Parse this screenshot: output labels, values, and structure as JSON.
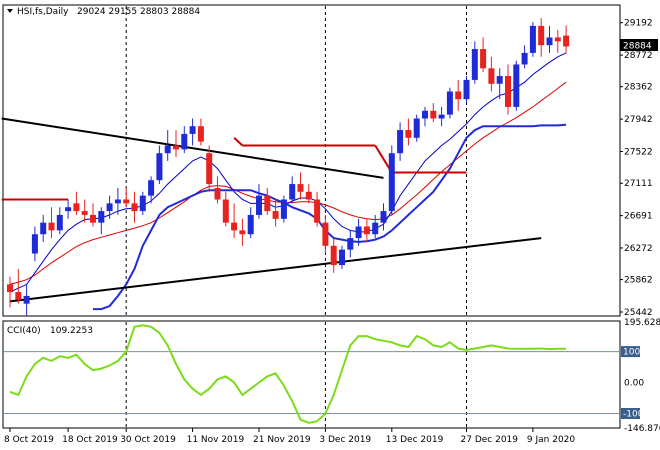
{
  "chart_data": [
    {
      "type": "candlestick",
      "title": "HSI,fs,Daily  29024 29155 28803 28884",
      "symbol": "HSI,fs,Daily",
      "ohlc_readout": "29024 29155 28803 28884",
      "last_price_label": "28884",
      "ylim": [
        25442,
        29382
      ],
      "yticks": [
        "29192",
        "28772",
        "28362",
        "27942",
        "27522",
        "27111",
        "26691",
        "26272",
        "25862",
        "25442"
      ],
      "xlabels": [
        "8 Oct 2019",
        "18 Oct 2019",
        "30 Oct 2019",
        "11 Nov 2019",
        "21 Nov 2019",
        "3 Dec 2019",
        "13 Dec 2019",
        "27 Dec 2019",
        "9 Jan 2020"
      ],
      "xlabel_index": [
        0,
        7,
        14,
        22,
        30,
        38,
        46,
        55,
        63
      ],
      "vgrid_index": [
        14,
        38,
        55
      ],
      "colors": {
        "up": "#1f2bd6",
        "down": "#e8221f",
        "ma_fast": "#0000c8",
        "ma_slow": "#dd0000",
        "trend": "#000000",
        "hline": "#cc0000"
      },
      "candles": [
        [
          25800,
          25900,
          25500,
          25700
        ],
        [
          25700,
          26000,
          25550,
          25600
        ],
        [
          25550,
          25800,
          25400,
          25650
        ],
        [
          26200,
          26550,
          26100,
          26450
        ],
        [
          26450,
          26700,
          26350,
          26600
        ],
        [
          26600,
          26800,
          26400,
          26500
        ],
        [
          26500,
          26800,
          26450,
          26700
        ],
        [
          26750,
          26900,
          26650,
          26800
        ],
        [
          26850,
          27000,
          26700,
          26750
        ],
        [
          26750,
          26900,
          26600,
          26700
        ],
        [
          26700,
          26850,
          26550,
          26600
        ],
        [
          26600,
          26800,
          26450,
          26750
        ],
        [
          26750,
          26950,
          26650,
          26850
        ],
        [
          26850,
          27050,
          26700,
          26900
        ],
        [
          26900,
          27050,
          26800,
          26850
        ],
        [
          26850,
          27000,
          26600,
          26750
        ],
        [
          26750,
          27000,
          26700,
          26950
        ],
        [
          26950,
          27200,
          26850,
          27150
        ],
        [
          27150,
          27600,
          27100,
          27500
        ],
        [
          27500,
          27800,
          27400,
          27600
        ],
        [
          27600,
          27800,
          27450,
          27550
        ],
        [
          27550,
          27850,
          27500,
          27750
        ],
        [
          27750,
          27950,
          27600,
          27850
        ],
        [
          27850,
          27950,
          27600,
          27650
        ],
        [
          27500,
          27600,
          27000,
          27100
        ],
        [
          27050,
          27200,
          26850,
          26900
        ],
        [
          26900,
          27000,
          26550,
          26600
        ],
        [
          26600,
          26850,
          26400,
          26500
        ],
        [
          26500,
          26650,
          26300,
          26450
        ],
        [
          26450,
          26800,
          26400,
          26700
        ],
        [
          26700,
          27100,
          26650,
          26950
        ],
        [
          26950,
          27050,
          26700,
          26750
        ],
        [
          26750,
          26900,
          26550,
          26650
        ],
        [
          26650,
          26950,
          26600,
          26900
        ],
        [
          26900,
          27200,
          26850,
          27100
        ],
        [
          27100,
          27250,
          26900,
          27000
        ],
        [
          27000,
          27100,
          26850,
          26900
        ],
        [
          26900,
          27000,
          26550,
          26600
        ],
        [
          26600,
          26700,
          26200,
          26300
        ],
        [
          26300,
          26400,
          25950,
          26050
        ],
        [
          26050,
          26300,
          26000,
          26250
        ],
        [
          26250,
          26500,
          26150,
          26400
        ],
        [
          26400,
          26650,
          26300,
          26550
        ],
        [
          26550,
          26650,
          26350,
          26450
        ],
        [
          26450,
          26700,
          26400,
          26600
        ],
        [
          26600,
          26850,
          26500,
          26750
        ],
        [
          26750,
          27600,
          26700,
          27500
        ],
        [
          27500,
          27900,
          27400,
          27800
        ],
        [
          27800,
          27950,
          27600,
          27700
        ],
        [
          27700,
          28000,
          27650,
          27950
        ],
        [
          27950,
          28100,
          27850,
          28050
        ],
        [
          28050,
          28150,
          27900,
          27950
        ],
        [
          27950,
          28100,
          27850,
          28000
        ],
        [
          28000,
          28350,
          27950,
          28300
        ],
        [
          28300,
          28450,
          28050,
          28200
        ],
        [
          28200,
          28500,
          28150,
          28450
        ],
        [
          28450,
          28950,
          28400,
          28850
        ],
        [
          28850,
          29000,
          28550,
          28600
        ],
        [
          28600,
          28750,
          28300,
          28400
        ],
        [
          28400,
          28600,
          28200,
          28500
        ],
        [
          28500,
          28650,
          28000,
          28100
        ],
        [
          28100,
          28700,
          28050,
          28650
        ],
        [
          28650,
          28900,
          28600,
          28800
        ],
        [
          28800,
          29200,
          28750,
          29150
        ],
        [
          29150,
          29250,
          28750,
          28900
        ],
        [
          28900,
          29150,
          28800,
          29000
        ],
        [
          29000,
          29100,
          28800,
          28950
        ],
        [
          29024,
          29155,
          28803,
          28884
        ]
      ],
      "ma_fast": [
        25700,
        25750,
        25800,
        25950,
        26100,
        26250,
        26380,
        26500,
        26580,
        26640,
        26650,
        26660,
        26700,
        26750,
        26780,
        26790,
        26820,
        26880,
        26980,
        27100,
        27200,
        27300,
        27400,
        27450,
        27400,
        27300,
        27150,
        27000,
        26900,
        26850,
        26850,
        26850,
        26800,
        26820,
        26880,
        26920,
        26920,
        26880,
        26780,
        26650,
        26550,
        26500,
        26480,
        26480,
        26520,
        26580,
        26750,
        26950,
        27100,
        27250,
        27400,
        27500,
        27600,
        27680,
        27780,
        27880,
        28000,
        28100,
        28180,
        28250,
        28280,
        28350,
        28420,
        28520,
        28600,
        28680,
        28750,
        28800
      ],
      "ma_slow": [
        25800,
        25830,
        25860,
        25920,
        26000,
        26080,
        26150,
        26220,
        26290,
        26340,
        26380,
        26410,
        26440,
        26470,
        26500,
        26530,
        26560,
        26600,
        26660,
        26730,
        26800,
        26870,
        26950,
        27020,
        27070,
        27080,
        27070,
        27030,
        26980,
        26940,
        26910,
        26890,
        26870,
        26860,
        26860,
        26870,
        26870,
        26860,
        26830,
        26790,
        26740,
        26700,
        26670,
        26650,
        26640,
        26650,
        26700,
        26780,
        26870,
        26960,
        27060,
        27160,
        27260,
        27350,
        27440,
        27530,
        27620,
        27700,
        27770,
        27840,
        27900,
        27960,
        28030,
        28100,
        28180,
        28260,
        28340,
        28420
      ],
      "channel_low": [
        null,
        null,
        null,
        null,
        null,
        null,
        null,
        null,
        null,
        null,
        25480,
        25480,
        25520,
        25650,
        25800,
        26000,
        26300,
        26500,
        26700,
        26800,
        26850,
        26900,
        26950,
        27000,
        27020,
        27020,
        27020,
        27020,
        27020,
        27020,
        26980,
        26950,
        26900,
        26860,
        26800,
        26760,
        26720,
        26650,
        26500,
        26400,
        26380,
        26360,
        26350,
        26360,
        26380,
        26420,
        26500,
        26600,
        26700,
        26800,
        26900,
        27000,
        27150,
        27300,
        27500,
        27700,
        27800,
        27850,
        27850,
        27850,
        27850,
        27850,
        27850,
        27850,
        27860,
        27860,
        27860,
        27870
      ],
      "trend_upper": {
        "from": [
          -1,
          27950
        ],
        "to": [
          45,
          27180
        ]
      },
      "trend_lower": {
        "from": [
          0,
          25580
        ],
        "to": [
          64,
          26400
        ]
      },
      "hline_segments": [
        {
          "from": [
            -1,
            26900
          ],
          "to": [
            7,
            26900
          ]
        },
        {
          "from": [
            27,
            27700
          ],
          "to": [
            28,
            27600
          ]
        },
        {
          "from": [
            28,
            27600
          ],
          "to": [
            44,
            27600
          ]
        },
        {
          "from": [
            44,
            27600
          ],
          "to": [
            46,
            27250
          ]
        },
        {
          "from": [
            46,
            27250
          ],
          "to": [
            55,
            27250
          ]
        }
      ]
    },
    {
      "type": "line",
      "title": "CCI(40) 109.2253",
      "indicator": "CCI(40)",
      "value_label": "109.2253",
      "ylim": [
        -146.876,
        195.6284
      ],
      "yticks": [
        "195.6284",
        "100",
        "0.00",
        "-100",
        "-146.876"
      ],
      "highlighted_ticks": [
        "100",
        "-100"
      ],
      "levels": [
        100,
        -100
      ],
      "color": "#7bdc1a",
      "values": [
        -30,
        -40,
        20,
        60,
        80,
        70,
        85,
        80,
        90,
        60,
        40,
        45,
        55,
        70,
        100,
        180,
        185,
        180,
        160,
        120,
        60,
        10,
        -20,
        -40,
        -20,
        10,
        20,
        0,
        -40,
        -20,
        0,
        20,
        30,
        -10,
        -60,
        -120,
        -130,
        -125,
        -100,
        -40,
        40,
        120,
        150,
        150,
        140,
        135,
        130,
        120,
        115,
        150,
        140,
        120,
        115,
        130,
        110,
        105,
        110,
        115,
        120,
        115,
        110,
        109,
        109,
        109,
        110,
        108,
        109,
        109
      ]
    }
  ]
}
